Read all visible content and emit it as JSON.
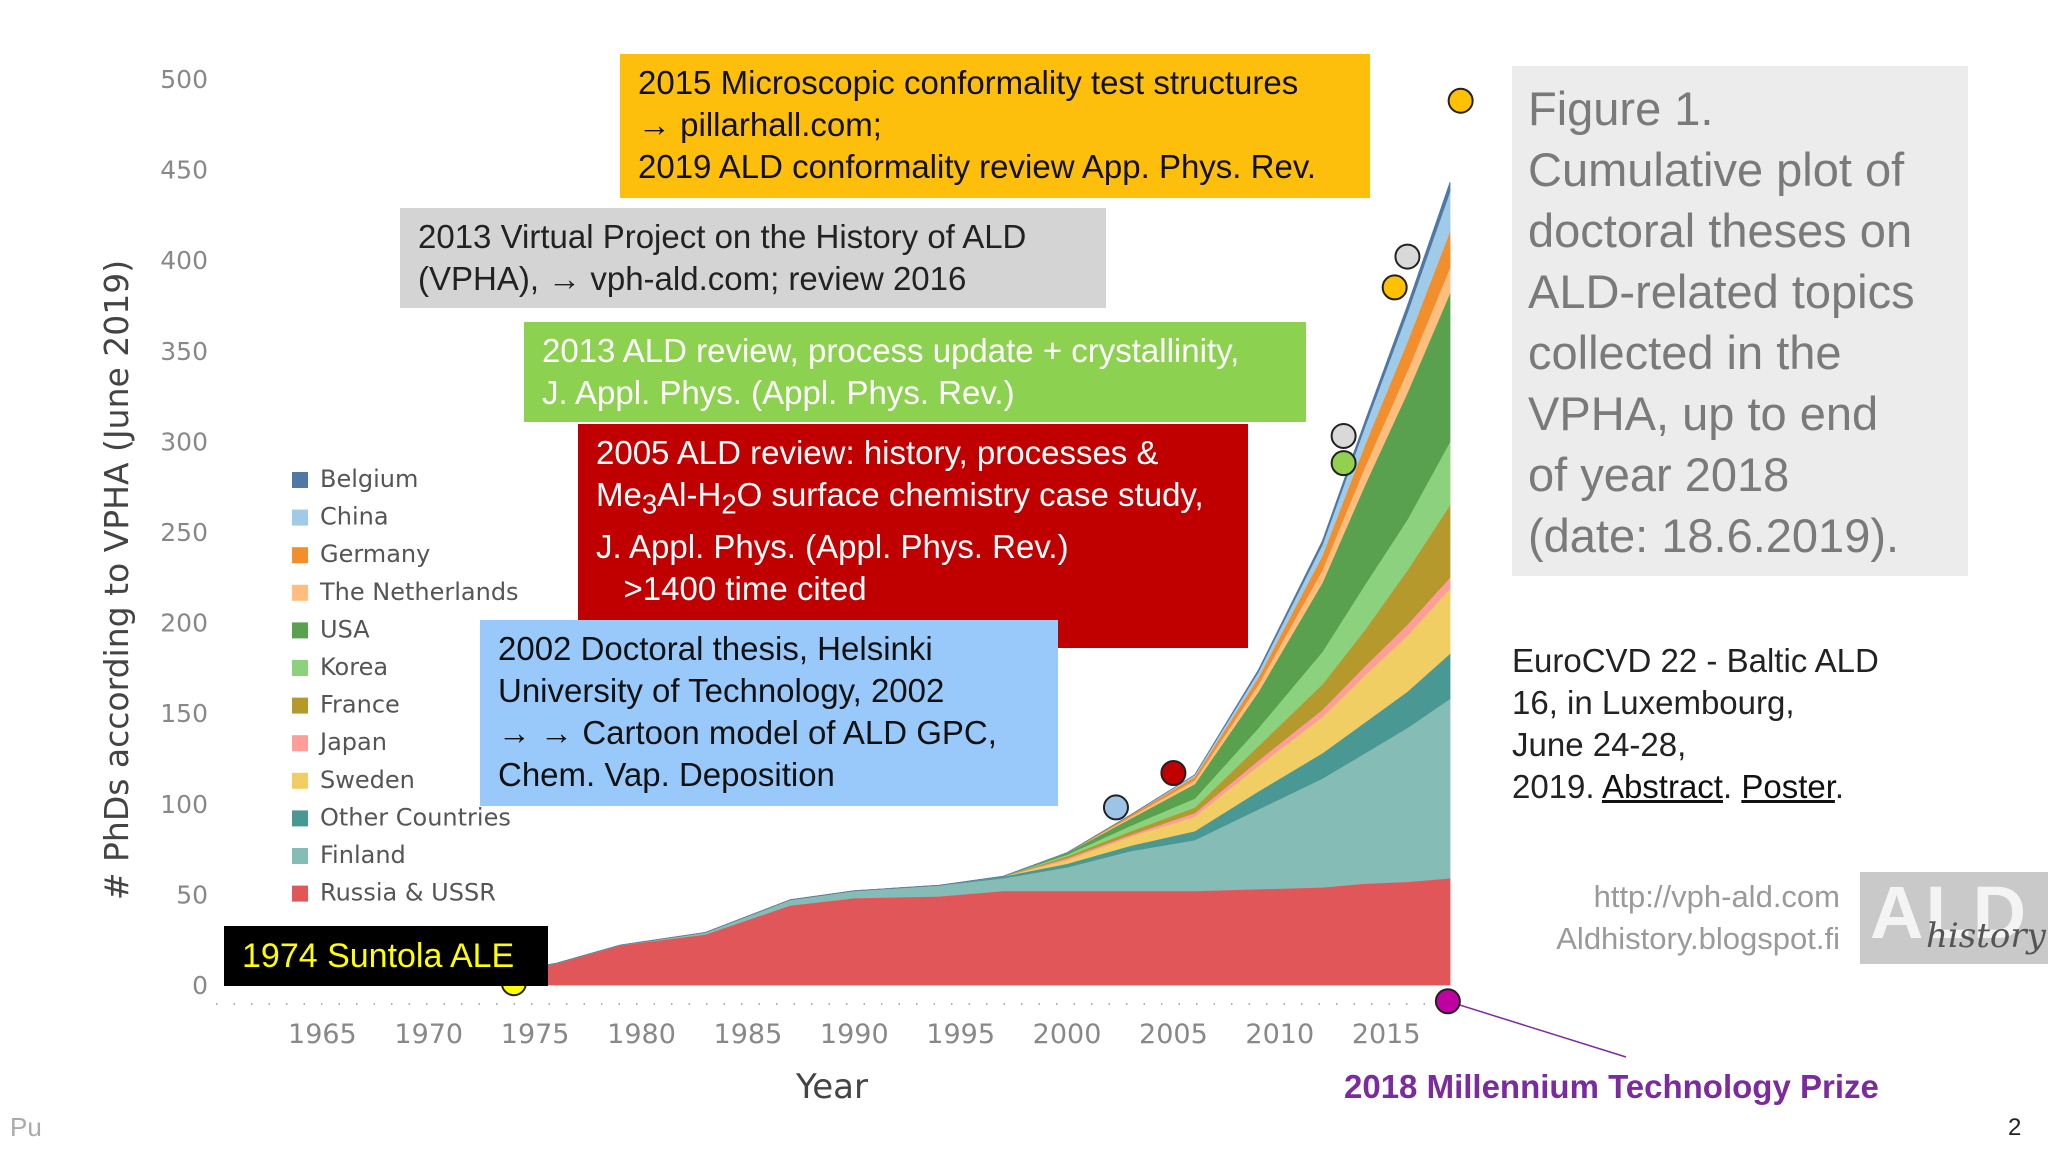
{
  "chart_data": {
    "type": "area",
    "stacked": true,
    "title": "",
    "xlabel": "Year",
    "ylabel": "# PhDs according to VPHA (June 2019)",
    "xlim": [
      1960,
      2018
    ],
    "ylim": [
      0,
      500
    ],
    "x_ticks": [
      1965,
      1970,
      1975,
      1980,
      1985,
      1990,
      1995,
      2000,
      2005,
      2010,
      2015
    ],
    "y_ticks": [
      0,
      50,
      100,
      150,
      200,
      250,
      300,
      350,
      400,
      450,
      500
    ],
    "x": [
      1963,
      1970,
      1973,
      1976,
      1979,
      1983,
      1987,
      1990,
      1994,
      1997,
      2000,
      2003,
      2006,
      2009,
      2012,
      2014,
      2016,
      2018
    ],
    "series": [
      {
        "name": "Russia & USSR",
        "color": "#e15759",
        "values": [
          0,
          2,
          6,
          12,
          22,
          28,
          44,
          48,
          49,
          52,
          52,
          52,
          52,
          53,
          54,
          56,
          57,
          59
        ]
      },
      {
        "name": "Finland",
        "color": "#86bcb6",
        "values": [
          0,
          0,
          0,
          0,
          0,
          1,
          3,
          4,
          6,
          7,
          13,
          22,
          28,
          44,
          60,
          72,
          85,
          99
        ]
      },
      {
        "name": "Other Countries",
        "color": "#499894",
        "values": [
          0,
          0,
          0,
          0,
          0,
          0,
          0,
          0,
          0,
          1,
          2,
          3,
          5,
          10,
          14,
          17,
          20,
          25
        ]
      },
      {
        "name": "Sweden",
        "color": "#f1ce63",
        "values": [
          0,
          0,
          0,
          0,
          0,
          0,
          0,
          0,
          0,
          0,
          2,
          5,
          8,
          14,
          20,
          26,
          31,
          36
        ]
      },
      {
        "name": "Japan",
        "color": "#ff9d9a",
        "values": [
          0,
          0,
          0,
          0,
          0,
          0,
          0,
          0,
          0,
          0,
          1,
          1,
          2,
          3,
          4,
          5,
          6,
          6
        ]
      },
      {
        "name": "France",
        "color": "#b6992d",
        "values": [
          0,
          0,
          0,
          0,
          0,
          0,
          0,
          0,
          0,
          0,
          1,
          2,
          3,
          8,
          14,
          20,
          30,
          40
        ]
      },
      {
        "name": "Korea",
        "color": "#8cd17d",
        "values": [
          0,
          0,
          0,
          0,
          0,
          0,
          0,
          0,
          0,
          0,
          1,
          3,
          5,
          10,
          18,
          25,
          28,
          35
        ]
      },
      {
        "name": "USA",
        "color": "#59a14f",
        "values": [
          0,
          0,
          0,
          0,
          0,
          0,
          0,
          0,
          0,
          0,
          1,
          4,
          8,
          20,
          38,
          55,
          70,
          82
        ]
      },
      {
        "name": "The Netherlands",
        "color": "#ffbe7d",
        "values": [
          0,
          0,
          0,
          0,
          0,
          0,
          0,
          0,
          0,
          0,
          0,
          1,
          2,
          4,
          7,
          10,
          12,
          14
        ]
      },
      {
        "name": "Germany",
        "color": "#f28e2b",
        "values": [
          0,
          0,
          0,
          0,
          0,
          0,
          0,
          0,
          0,
          0,
          0,
          1,
          2,
          4,
          8,
          12,
          16,
          20
        ]
      },
      {
        "name": "China",
        "color": "#a0cbe8",
        "values": [
          0,
          0,
          0,
          0,
          0,
          0,
          0,
          0,
          0,
          0,
          0,
          0,
          1,
          3,
          6,
          10,
          16,
          22
        ]
      },
      {
        "name": "Belgium",
        "color": "#4e79a7",
        "values": [
          0,
          0,
          0,
          0,
          0,
          0,
          0,
          0,
          0,
          0,
          0,
          0,
          0,
          1,
          2,
          3,
          4,
          5
        ]
      }
    ],
    "legend": {
      "placement": "left-center"
    },
    "markers": [
      {
        "year": 1974,
        "value": 1,
        "color": "#ffff00",
        "label": "1974 Suntola ALE"
      },
      {
        "year": 2002.3,
        "value": 98,
        "color": "#9dc3e6",
        "label": "2002 Doctoral thesis"
      },
      {
        "year": 2005,
        "value": 117,
        "color": "#c00000",
        "label": "2005 ALD review"
      },
      {
        "year": 2013,
        "value": 288,
        "color": "#92d050",
        "label": "2013 ALD review"
      },
      {
        "year": 2013,
        "value": 303,
        "color": "#d9d9d9",
        "label": "2013 Virtual Project"
      },
      {
        "year": 2015.4,
        "value": 385,
        "color": "#ffc000",
        "label": "2015 conformality"
      },
      {
        "year": 2016,
        "value": 402,
        "color": "#d9d9d9",
        "label": "2016 review"
      },
      {
        "year": 2018.5,
        "value": 488,
        "color": "#ffc000",
        "label": "2019 review"
      },
      {
        "year": 2017.9,
        "value": -9,
        "color": "#c000a0",
        "label": "2018 Millennium Technology Prize"
      }
    ]
  },
  "callouts": {
    "c2015": [
      "2015 Microscopic conformality test structures",
      "→ pillarhall.com;",
      "2019 ALD conformality review App. Phys. Rev."
    ],
    "c2013_vpha": [
      "2013 Virtual Project on the History of ALD",
      "(VPHA), → vph-ald.com; review 2016"
    ],
    "c2013_review": [
      "2013 ALD review, process update + crystallinity,",
      "J. Appl. Phys. (Appl. Phys. Rev.)"
    ],
    "c2005": {
      "line1": "2005 ALD review: history, processes &",
      "line2_pre": "Me",
      "line2_sub1": "3",
      "line2_mid": "Al-H",
      "line2_sub2": "2",
      "line2_post": "O surface chemistry case study,",
      "line3": "J. Appl. Phys. (Appl. Phys. Rev.)",
      "line4": "   >1400 time cited"
    },
    "c2002": [
      "2002 Doctoral thesis, Helsinki",
      "University of Technology, 2002",
      "→ → Cartoon model of ALD GPC,",
      "Chem. Vap. Deposition"
    ],
    "c1974": "1974 Suntola ALE"
  },
  "figure_caption": [
    "Figure 1.",
    "Cumulative plot of",
    "doctoral theses on",
    "ALD-related topics",
    "collected in the",
    "VPHA, up to end",
    "of year 2018",
    "(date: 18.6.2019)."
  ],
  "conference": {
    "lines": [
      "EuroCVD 22 - Baltic ALD",
      "16, in Luxembourg,",
      "June 24-28,"
    ],
    "last_prefix": "2019. ",
    "abstract_link": "Abstract",
    "sep": ". ",
    "poster_link": "Poster",
    "end": "."
  },
  "urls": [
    "http://vph-ald.com",
    "Aldhistory.blogspot.fi"
  ],
  "logo": {
    "main": "ALD",
    "sub": "history"
  },
  "prize_label": "2018 Millennium Technology Prize",
  "footer_left": "Pu",
  "page_number": "2",
  "colors": {
    "prize_purple": "#7b2aa0",
    "prize_marker": "#c000a0"
  }
}
